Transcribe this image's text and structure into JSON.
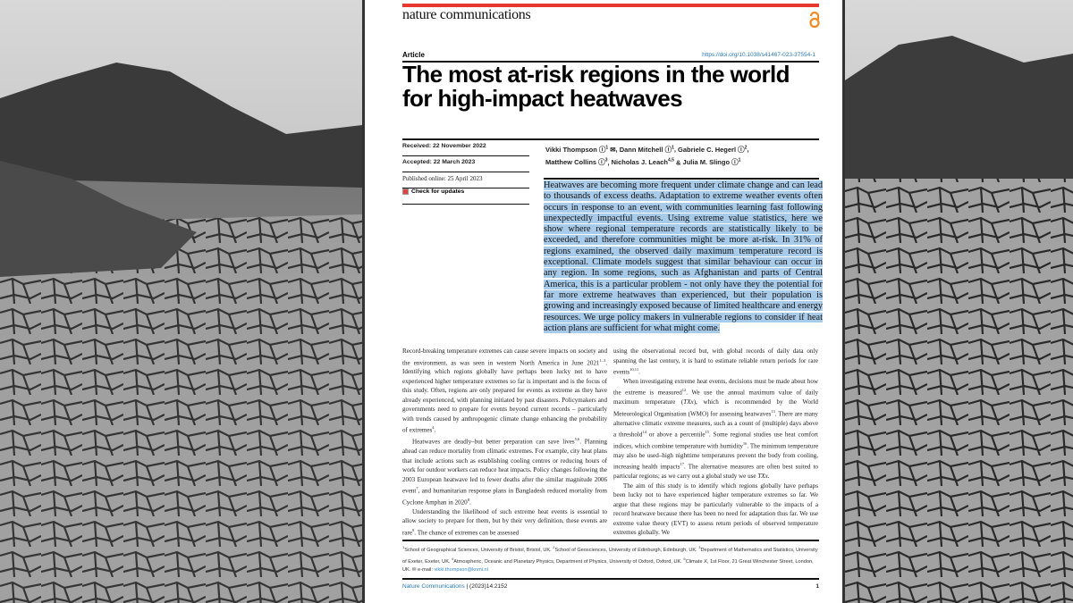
{
  "colors": {
    "brand_red": "#e8372f",
    "highlight": "#a9cbea",
    "link": "#2a7ab8",
    "open_access": "#f08a24"
  },
  "header": {
    "journal": "nature communications",
    "open_access_icon": "open-access-icon",
    "article_type": "Article",
    "doi": "https://doi.org/10.1038/s41467-023-37554-1"
  },
  "title": "The most at-risk regions in the world for high-impact heatwaves",
  "meta": {
    "received": "Received: 22 November 2022",
    "accepted": "Accepted: 22 March 2023",
    "published": "Published online: 25 April 2023",
    "check_updates": "Check for updates"
  },
  "authors": [
    {
      "name": "Vikki Thompson",
      "aff": "1",
      "orcid": true,
      "email": true
    },
    {
      "name": "Dann Mitchell",
      "aff": "1",
      "orcid": true
    },
    {
      "name": "Gabriele C. Hegerl",
      "aff": "2",
      "orcid": true
    },
    {
      "name": "Matthew Collins",
      "aff": "3",
      "orcid": true
    },
    {
      "name": "Nicholas J. Leach",
      "aff": "4,5",
      "orcid": false
    },
    {
      "name": "Julia M. Slingo",
      "aff": "1",
      "orcid": true
    }
  ],
  "abstract": "Heatwaves are becoming more frequent under climate change and can lead to thousands of excess deaths. Adaptation to extreme weather events often occurs in response to an event, with communities learning fast following unexpectedly impactful events. Using extreme value statistics, here we show where regional temperature records are statistically likely to be exceeded, and therefore communities might be more at-risk. In 31% of regions examined, the observed daily maximum temperature record is exceptional. Climate models suggest that similar behaviour can occur in any region. In some regions, such as Afghanistan and parts of Central America, this is a particular problem - not only have they the potential for far more extreme heatwaves than experienced, but their population is growing and increasingly exposed because of limited healthcare and energy resources. We urge policy makers in vulnerable regions to consider if heat action plans are sufficient for what might come.",
  "body": {
    "col1": [
      [
        {
          "t": "Record-breaking temperature extremes can cause severe impacts on society and the environment, as was seen in western North America in June 2021"
        },
        {
          "s": "1–3"
        },
        {
          "t": ". Identifying which regions globally have perhaps been lucky not to have experienced higher temperature extremes so far is important and is the focus of this study. Often, regions are only prepared for events as extreme as they have already experienced, with planning initiated by past disasters. Policymakers and governments need to prepare for events beyond current records – particularly with trends caused by anthropogenic climate change enhancing the probability of extremes"
        },
        {
          "s": "4"
        },
        {
          "t": "."
        }
      ],
      [
        {
          "t": "Heatwaves are deadly–but better preparation can save lives"
        },
        {
          "s": "5,6"
        },
        {
          "t": ". Planning ahead can reduce mortality from climatic extremes. For example, city heat plans that include actions such as establishing cooling centres or reducing hours of work for outdoor workers can reduce heat impacts. Policy changes following the 2003 European heatwave led to fewer deaths after the similar magnitude 2006 event"
        },
        {
          "s": "7"
        },
        {
          "t": ", and humanitarian response plans in Bangladesh reduced mortality from Cyclone Amphan in 2020"
        },
        {
          "s": "8"
        },
        {
          "t": "."
        }
      ],
      [
        {
          "t": "Understanding the likelihood of such extreme heat events is essential to allow society to prepare for them, but by their very definition, these events are rare"
        },
        {
          "s": "9"
        },
        {
          "t": ". The chance of extremes can be assessed"
        }
      ]
    ],
    "col2": [
      [
        {
          "t": "using the observational record but, with global records of daily data only spanning the last century, it is hard to estimate reliable return periods for rare events"
        },
        {
          "s": "10,11"
        },
        {
          "t": "."
        }
      ],
      [
        {
          "t": "When investigating extreme heat events, decisions must be made about how the extreme is measured"
        },
        {
          "s": "12"
        },
        {
          "t": ". We use the annual maximum value of daily maximum temperature ("
        },
        {
          "i": "TXx"
        },
        {
          "t": "), which is recommended by the World Meteorological Organisation (WMO) for assessing heatwaves"
        },
        {
          "s": "13"
        },
        {
          "t": ". There are many alternative climatic extreme measures, such as a count of (multiple) days above a threshold"
        },
        {
          "s": "14"
        },
        {
          "t": " or above a percentile"
        },
        {
          "s": "15"
        },
        {
          "t": ". Some regional studies use heat comfort indices, which combine temperature with humidity"
        },
        {
          "s": "16"
        },
        {
          "t": ". The minimum temperature may also be used–high nighttime temperatures prevent the body from cooling, increasing health impacts"
        },
        {
          "s": "17"
        },
        {
          "t": ". The alternative measures are often best suited to particular regions; as we carry out a global study we use "
        },
        {
          "i": "TXx"
        },
        {
          "t": "."
        }
      ],
      [
        {
          "t": "The aim of this study is to identify which regions globally have perhaps been lucky not to have experienced higher temperature extremes so far. We argue that these regions may be particularly vulnerable to the impacts of a record heatwave because there has been no need for adaptation thus far. We use extreme value theory (EVT) to assess return periods of observed temperature extremes globally. We"
        }
      ]
    ]
  },
  "footnotes": [
    {
      "s": "1"
    },
    {
      "t": "School of Geographical Sciences, University of Bristol, Bristol, UK. "
    },
    {
      "s": "2"
    },
    {
      "t": "School of Geosciences, University of Edinburgh, Edinburgh, UK. "
    },
    {
      "s": "3"
    },
    {
      "t": "Department of Mathematics and Statistics, University of Exeter, Exeter, UK. "
    },
    {
      "s": "4"
    },
    {
      "t": "Atmospheric, Oceanic and Planetary Physics, Department of Physics, University of Oxford, Oxford, UK. "
    },
    {
      "s": "5"
    },
    {
      "t": "Climate X, 1st Floor, 21 Great Winchester Street, London, UK. "
    },
    {
      "t": "✉ e-mail: "
    },
    {
      "a": "vikki.thompson@knmi.nl"
    }
  ],
  "footer": {
    "journal": "Nature Communications",
    "citation": " | (2023)14:2152",
    "page": "1"
  }
}
